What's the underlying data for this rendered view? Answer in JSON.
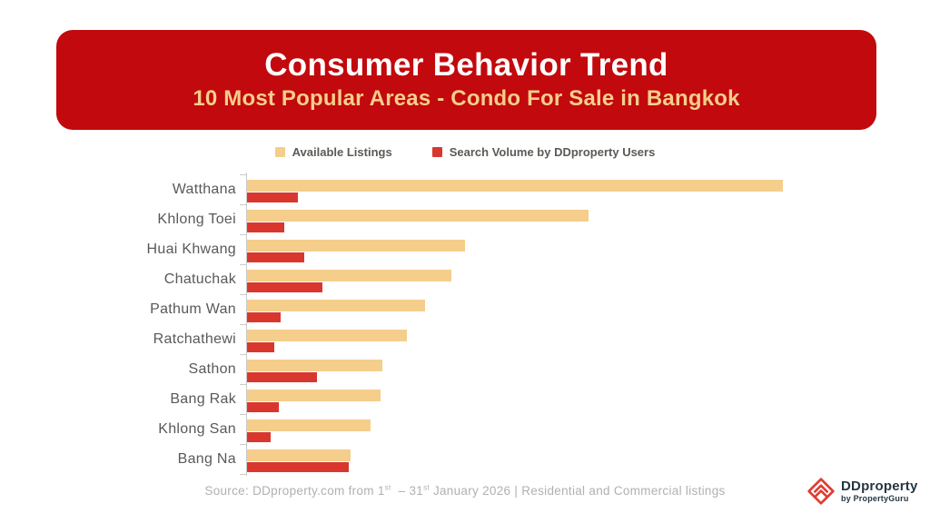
{
  "header": {
    "title": "Consumer Behavior Trend",
    "subtitle": "10 Most Popular Areas - Condo For Sale in Bangkok",
    "bg_color": "#C2090D",
    "title_color": "#FFFFFF",
    "subtitle_color": "#F5CE8C"
  },
  "legend": {
    "items": [
      {
        "label": "Available Listings",
        "color": "#F5CE8C"
      },
      {
        "label": "Search Volume by DDproperty Users",
        "color": "#D9372E"
      }
    ]
  },
  "chart_data": {
    "type": "bar",
    "orientation": "horizontal",
    "title": "Consumer Behavior Trend",
    "subtitle": "10 Most Popular Areas - Condo For Sale in Bangkok",
    "xlabel": "",
    "ylabel": "",
    "value_axis_visible": false,
    "units": "relative length, % of longest bar (no numeric axis shown in image)",
    "grid": false,
    "legend_position": "top-center",
    "categories": [
      "Watthana",
      "Khlong Toei",
      "Huai Khwang",
      "Chatuchak",
      "Pathum Wan",
      "Ratchathewi",
      "Sathon",
      "Bang Rak",
      "Khlong San",
      "Bang Na"
    ],
    "series": [
      {
        "name": "Available Listings",
        "color": "#F5CE8C",
        "values": [
          100,
          63.7,
          40.7,
          38.1,
          33.2,
          29.8,
          25.3,
          24.9,
          23.1,
          19.3
        ]
      },
      {
        "name": "Search Volume by DDproperty Users",
        "color": "#D9372E",
        "values": [
          9.5,
          6.9,
          10.7,
          14.1,
          6.3,
          5.1,
          13.1,
          5.9,
          4.4,
          19.0
        ]
      }
    ]
  },
  "footer": {
    "source": {
      "p1": "Source: DDproperty.com from 1",
      "sup1": "st",
      "p2": "  – 31",
      "sup2": "st",
      "p3": " January 2026 | Residential and Commercial listings"
    }
  },
  "logo": {
    "brand": "DDproperty",
    "byline": "by PropertyGuru",
    "icon_color": "#E03C31",
    "text_color": "#253642"
  }
}
